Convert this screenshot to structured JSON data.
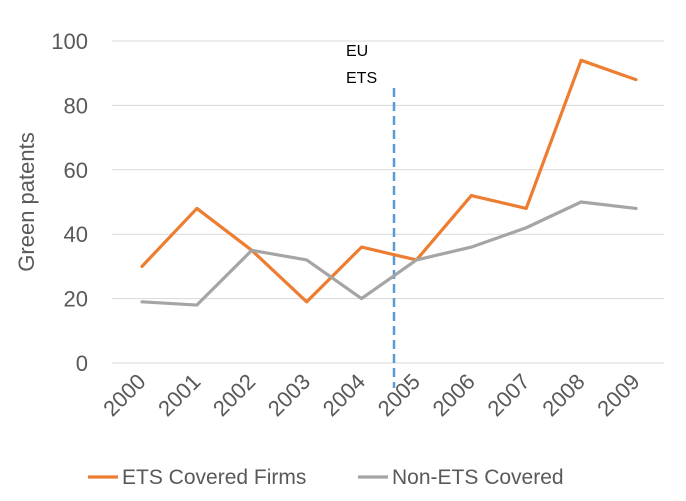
{
  "chart_data": {
    "type": "line",
    "categories": [
      "2000",
      "2001",
      "2002",
      "2003",
      "2004",
      "2005",
      "2006",
      "2007",
      "2008",
      "2009"
    ],
    "series": [
      {
        "name": "ETS Covered Firms",
        "color": "#ED7D31",
        "values": [
          30,
          48,
          35,
          19,
          36,
          32,
          52,
          48,
          94,
          88
        ]
      },
      {
        "name": "Non-ETS Covered",
        "color": "#A5A5A5",
        "values": [
          19,
          18,
          35,
          32,
          20,
          32,
          36,
          42,
          50,
          48
        ]
      }
    ],
    "ylabel": "Green patents",
    "xlabel": "",
    "ylim": [
      0,
      100
    ],
    "yticks": [
      0,
      20,
      40,
      60,
      80,
      100
    ],
    "grid": true,
    "legend_position": "bottom",
    "annotation": {
      "lines": [
        "EU",
        "ETS"
      ],
      "x_position": 4.5,
      "color": "#5B9BD5",
      "style": "dashed vertical line"
    }
  }
}
